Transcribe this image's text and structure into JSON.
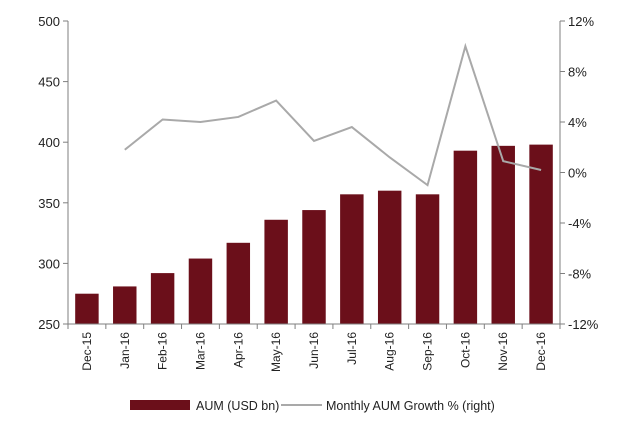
{
  "chart_data": {
    "type": "bar",
    "categories": [
      "Dec-15",
      "Jan-16",
      "Feb-16",
      "Mar-16",
      "Apr-16",
      "May-16",
      "Jun-16",
      "Jul-16",
      "Aug-16",
      "Sep-16",
      "Oct-16",
      "Nov-16",
      "Dec-16"
    ],
    "series": [
      {
        "name": "AUM (USD bn)",
        "type": "bar",
        "axis": "left",
        "color": "#6b0f1a",
        "values": [
          275,
          281,
          292,
          304,
          317,
          336,
          344,
          357,
          360,
          357,
          393,
          397,
          398
        ]
      },
      {
        "name": "Monthly AUM Growth % (right)",
        "type": "line",
        "axis": "right",
        "color": "#a9a9a9",
        "values": [
          null,
          1.8,
          4.2,
          4.0,
          4.4,
          5.7,
          2.5,
          3.6,
          1.2,
          -1.0,
          10.0,
          0.9,
          0.2
        ]
      }
    ],
    "left_axis": {
      "ylim": [
        250,
        500
      ],
      "ticks": [
        "250",
        "300",
        "350",
        "400",
        "450",
        "500"
      ]
    },
    "right_axis": {
      "ylim": [
        -12,
        12
      ],
      "ticks": [
        "-12%",
        "-8%",
        "-4%",
        "0%",
        "4%",
        "8%",
        "12%"
      ]
    },
    "grid": false,
    "legend_position": "bottom"
  }
}
